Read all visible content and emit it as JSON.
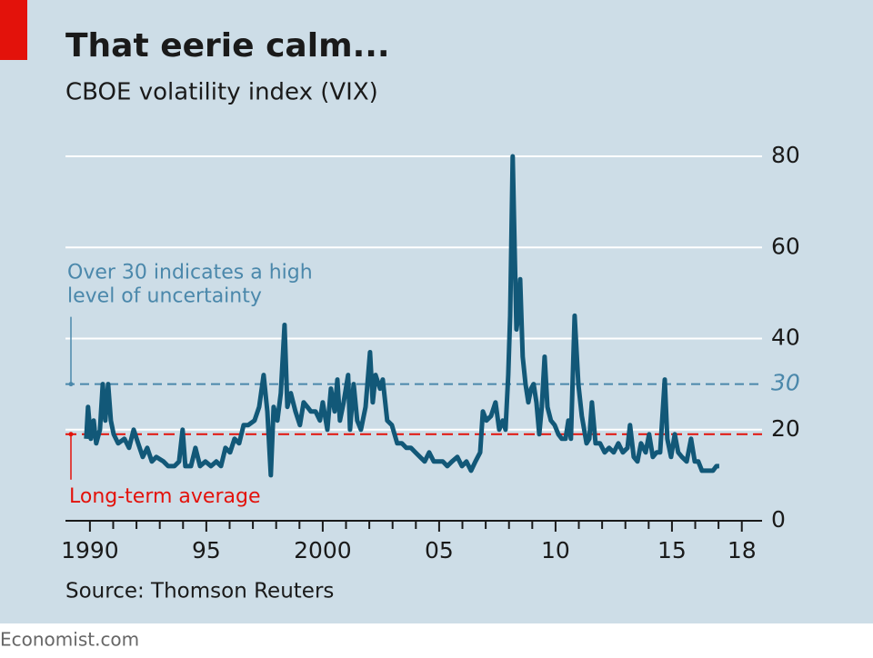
{
  "chart_data": {
    "type": "line",
    "title": "That eerie calm...",
    "subtitle": "CBOE volatility index (VIX)",
    "source": "Source: Thomson Reuters",
    "footer": "Economist.com",
    "xlim": [
      1988.95,
      2018.87
    ],
    "ylim": [
      0,
      80
    ],
    "yticks": [
      0,
      20,
      40,
      60,
      80
    ],
    "xticks": [
      1990,
      {
        "value": 1995,
        "label": "95"
      },
      2000,
      {
        "value": 2005,
        "label": "05"
      },
      {
        "value": 2010,
        "label": "10"
      },
      {
        "value": 2015,
        "label": "15"
      },
      {
        "value": 2018,
        "label": "18"
      }
    ],
    "x_minor_ticks": [
      1991,
      1992,
      1993,
      1994,
      1996,
      1997,
      1998,
      1999,
      2001,
      2002,
      2003,
      2004,
      2006,
      2007,
      2008,
      2009,
      2011,
      2012,
      2013,
      2014,
      2016,
      2017
    ],
    "grid": true,
    "reference_lines": [
      {
        "value": 30,
        "color": "#4b88ab",
        "annotation": [
          "Over 30 indicates a high",
          "level of uncertainty"
        ]
      },
      {
        "value": 19,
        "color": "#e3120b",
        "annotation": [
          "Long-term average"
        ]
      }
    ],
    "series": [
      {
        "name": "VIX",
        "color": "#125878",
        "x": [
          1989.84,
          1989.92,
          1990.04,
          1990.16,
          1990.27,
          1990.43,
          1990.55,
          1990.66,
          1990.78,
          1990.9,
          1991.02,
          1991.21,
          1991.48,
          1991.68,
          1991.88,
          1992.07,
          1992.27,
          1992.46,
          1992.66,
          1992.85,
          1993.16,
          1993.36,
          1993.63,
          1993.83,
          1993.98,
          1994.1,
          1994.34,
          1994.53,
          1994.73,
          1994.96,
          1995.2,
          1995.43,
          1995.63,
          1995.82,
          1996.02,
          1996.21,
          1996.41,
          1996.6,
          1996.8,
          1997.07,
          1997.27,
          1997.46,
          1997.62,
          1997.77,
          1997.89,
          1998.05,
          1998.2,
          1998.36,
          1998.48,
          1998.63,
          1998.83,
          1999.02,
          1999.18,
          1999.34,
          1999.49,
          1999.69,
          1999.88,
          2000.0,
          2000.2,
          2000.35,
          2000.51,
          2000.63,
          2000.74,
          2000.9,
          2001.09,
          2001.17,
          2001.33,
          2001.48,
          2001.64,
          2001.84,
          2002.03,
          2002.15,
          2002.27,
          2002.46,
          2002.58,
          2002.77,
          2002.97,
          2003.2,
          2003.4,
          2003.59,
          2003.79,
          2003.98,
          2004.18,
          2004.38,
          2004.57,
          2004.77,
          2004.96,
          2005.16,
          2005.35,
          2005.55,
          2005.78,
          2005.98,
          2006.17,
          2006.37,
          2006.56,
          2006.76,
          2006.88,
          2007.03,
          2007.23,
          2007.42,
          2007.58,
          2007.73,
          2007.85,
          2007.97,
          2008.05,
          2008.16,
          2008.24,
          2008.32,
          2008.4,
          2008.48,
          2008.59,
          2008.71,
          2008.83,
          2008.95,
          2009.06,
          2009.18,
          2009.3,
          2009.41,
          2009.53,
          2009.65,
          2009.8,
          2009.96,
          2010.12,
          2010.27,
          2010.43,
          2010.55,
          2010.66,
          2010.82,
          2010.98,
          2011.13,
          2011.33,
          2011.45,
          2011.56,
          2011.72,
          2011.91,
          2012.11,
          2012.3,
          2012.5,
          2012.7,
          2012.89,
          2013.09,
          2013.2,
          2013.36,
          2013.52,
          2013.67,
          2013.87,
          2014.02,
          2014.18,
          2014.34,
          2014.49,
          2014.69,
          2014.8,
          2014.96,
          2015.12,
          2015.27,
          2015.43,
          2015.63,
          2015.82,
          2015.98,
          2016.13,
          2016.29,
          2016.45,
          2016.6,
          2016.76,
          2016.91,
          2017.03
        ],
        "values": [
          18,
          25,
          18,
          22,
          17,
          20,
          30,
          22,
          30,
          22,
          19,
          17,
          18,
          16,
          20,
          17,
          14,
          16,
          13,
          14,
          13,
          12,
          12,
          13,
          20,
          12,
          12,
          16,
          12,
          13,
          12,
          13,
          12,
          16,
          15,
          18,
          17,
          21,
          21,
          22,
          25,
          32,
          24,
          10,
          25,
          22,
          28,
          43,
          25,
          28,
          24,
          21,
          26,
          25,
          24,
          24,
          22,
          26,
          20,
          29,
          24,
          31,
          22,
          26,
          32,
          20,
          30,
          22,
          20,
          25,
          37,
          26,
          32,
          29,
          31,
          22,
          21,
          17,
          17,
          16,
          16,
          15,
          14,
          13,
          15,
          13,
          13,
          13,
          12,
          13,
          14,
          12,
          13,
          11,
          13,
          15,
          24,
          22,
          23,
          26,
          20,
          22,
          20,
          32,
          45,
          80,
          60,
          42,
          45,
          53,
          36,
          30,
          26,
          29,
          30,
          26,
          19,
          25,
          36,
          25,
          22,
          21,
          19,
          18,
          18,
          22,
          18,
          45,
          30,
          23,
          17,
          18,
          26,
          17,
          17,
          15,
          16,
          15,
          17,
          15,
          16,
          21,
          14,
          13,
          17,
          15,
          19,
          14,
          15,
          15,
          31,
          18,
          14,
          19,
          15,
          14,
          13,
          18,
          13,
          13,
          11,
          11,
          11,
          11,
          12,
          12
        ]
      }
    ]
  }
}
